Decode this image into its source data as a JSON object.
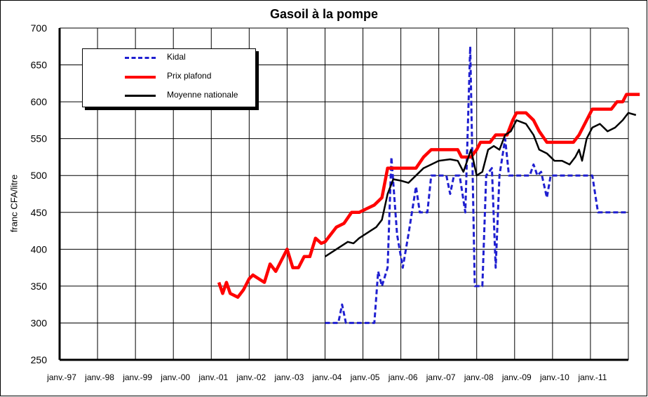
{
  "chart_data": {
    "type": "line",
    "title": "Gasoil à la pompe",
    "ylabel": "franc CFA/litre",
    "xlabel": "",
    "ylim": [
      250,
      700
    ],
    "yticks": [
      250,
      300,
      350,
      400,
      450,
      500,
      550,
      600,
      650,
      700
    ],
    "x_range": [
      1997,
      2012
    ],
    "x_tick_labels": [
      "janv.-97",
      "janv.-98",
      "janv.-99",
      "janv.-00",
      "janv.-01",
      "janv.-02",
      "janv.-03",
      "janv.-04",
      "janv.-05",
      "janv.-06",
      "janv.-07",
      "janv.-08",
      "janv.-09",
      "janv.-10",
      "janv.-11"
    ],
    "grid": true,
    "legend_position": "top-left",
    "series": [
      {
        "name": "Kidal",
        "color": "#1f1fd0",
        "style": "dashed",
        "points": [
          [
            2004.0,
            300
          ],
          [
            2004.35,
            300
          ],
          [
            2004.45,
            325
          ],
          [
            2004.55,
            300
          ],
          [
            2004.8,
            300
          ],
          [
            2005.3,
            300
          ],
          [
            2005.4,
            370
          ],
          [
            2005.5,
            350
          ],
          [
            2005.65,
            375
          ],
          [
            2005.75,
            525
          ],
          [
            2005.9,
            420
          ],
          [
            2006.05,
            375
          ],
          [
            2006.2,
            420
          ],
          [
            2006.4,
            485
          ],
          [
            2006.5,
            450
          ],
          [
            2006.7,
            450
          ],
          [
            2006.8,
            500
          ],
          [
            2007.2,
            500
          ],
          [
            2007.3,
            475
          ],
          [
            2007.4,
            500
          ],
          [
            2007.55,
            500
          ],
          [
            2007.7,
            450
          ],
          [
            2007.83,
            675
          ],
          [
            2007.95,
            350
          ],
          [
            2008.15,
            350
          ],
          [
            2008.25,
            500
          ],
          [
            2008.4,
            510
          ],
          [
            2008.5,
            375
          ],
          [
            2008.6,
            500
          ],
          [
            2008.75,
            550
          ],
          [
            2008.85,
            500
          ],
          [
            2009.4,
            500
          ],
          [
            2009.5,
            515
          ],
          [
            2009.6,
            500
          ],
          [
            2009.7,
            505
          ],
          [
            2009.85,
            470
          ],
          [
            2009.95,
            500
          ],
          [
            2010.0,
            500
          ],
          [
            2011.05,
            500
          ],
          [
            2011.2,
            450
          ],
          [
            2012.0,
            450
          ]
        ]
      },
      {
        "name": "Prix plafond",
        "color": "#ff0000",
        "style": "solid",
        "points": [
          [
            2001.2,
            355
          ],
          [
            2001.3,
            340
          ],
          [
            2001.4,
            355
          ],
          [
            2001.5,
            340
          ],
          [
            2001.7,
            335
          ],
          [
            2001.85,
            345
          ],
          [
            2002.0,
            360
          ],
          [
            2002.1,
            365
          ],
          [
            2002.25,
            360
          ],
          [
            2002.4,
            355
          ],
          [
            2002.55,
            380
          ],
          [
            2002.7,
            370
          ],
          [
            2002.85,
            385
          ],
          [
            2003.0,
            400
          ],
          [
            2003.15,
            375
          ],
          [
            2003.3,
            375
          ],
          [
            2003.45,
            390
          ],
          [
            2003.6,
            390
          ],
          [
            2003.75,
            415
          ],
          [
            2003.9,
            408
          ],
          [
            2004.0,
            410
          ],
          [
            2004.15,
            420
          ],
          [
            2004.3,
            430
          ],
          [
            2004.5,
            435
          ],
          [
            2004.7,
            450
          ],
          [
            2004.9,
            450
          ],
          [
            2005.1,
            455
          ],
          [
            2005.3,
            460
          ],
          [
            2005.5,
            470
          ],
          [
            2005.65,
            510
          ],
          [
            2006.4,
            510
          ],
          [
            2006.6,
            525
          ],
          [
            2006.8,
            535
          ],
          [
            2007.5,
            535
          ],
          [
            2007.6,
            525
          ],
          [
            2007.85,
            525
          ],
          [
            2008.0,
            535
          ],
          [
            2008.1,
            545
          ],
          [
            2008.35,
            545
          ],
          [
            2008.5,
            555
          ],
          [
            2008.8,
            555
          ],
          [
            2008.95,
            575
          ],
          [
            2009.05,
            585
          ],
          [
            2009.3,
            585
          ],
          [
            2009.5,
            575
          ],
          [
            2009.65,
            560
          ],
          [
            2009.85,
            545
          ],
          [
            2010.55,
            545
          ],
          [
            2010.7,
            555
          ],
          [
            2010.85,
            570
          ],
          [
            2011.05,
            590
          ],
          [
            2011.55,
            590
          ],
          [
            2011.7,
            600
          ],
          [
            2011.85,
            600
          ],
          [
            2011.95,
            610
          ],
          [
            2012.3,
            610
          ]
        ]
      },
      {
        "name": "Moyenne nationale",
        "color": "#000000",
        "style": "solid",
        "points": [
          [
            2004.0,
            390
          ],
          [
            2004.15,
            395
          ],
          [
            2004.3,
            400
          ],
          [
            2004.45,
            405
          ],
          [
            2004.6,
            410
          ],
          [
            2004.75,
            408
          ],
          [
            2004.9,
            415
          ],
          [
            2005.05,
            420
          ],
          [
            2005.2,
            425
          ],
          [
            2005.35,
            430
          ],
          [
            2005.5,
            440
          ],
          [
            2005.65,
            475
          ],
          [
            2005.8,
            495
          ],
          [
            2006.0,
            493
          ],
          [
            2006.2,
            490
          ],
          [
            2006.4,
            500
          ],
          [
            2006.6,
            510
          ],
          [
            2006.8,
            515
          ],
          [
            2007.0,
            520
          ],
          [
            2007.3,
            522
          ],
          [
            2007.5,
            520
          ],
          [
            2007.65,
            505
          ],
          [
            2007.85,
            535
          ],
          [
            2008.0,
            500
          ],
          [
            2008.15,
            505
          ],
          [
            2008.3,
            535
          ],
          [
            2008.45,
            540
          ],
          [
            2008.6,
            535
          ],
          [
            2008.75,
            555
          ],
          [
            2008.9,
            560
          ],
          [
            2009.05,
            575
          ],
          [
            2009.3,
            570
          ],
          [
            2009.5,
            555
          ],
          [
            2009.65,
            535
          ],
          [
            2009.85,
            530
          ],
          [
            2010.05,
            520
          ],
          [
            2010.25,
            520
          ],
          [
            2010.45,
            515
          ],
          [
            2010.6,
            525
          ],
          [
            2010.7,
            535
          ],
          [
            2010.78,
            520
          ],
          [
            2010.9,
            550
          ],
          [
            2011.05,
            565
          ],
          [
            2011.25,
            570
          ],
          [
            2011.45,
            560
          ],
          [
            2011.65,
            565
          ],
          [
            2011.85,
            575
          ],
          [
            2012.0,
            585
          ],
          [
            2012.2,
            582
          ]
        ]
      }
    ]
  }
}
